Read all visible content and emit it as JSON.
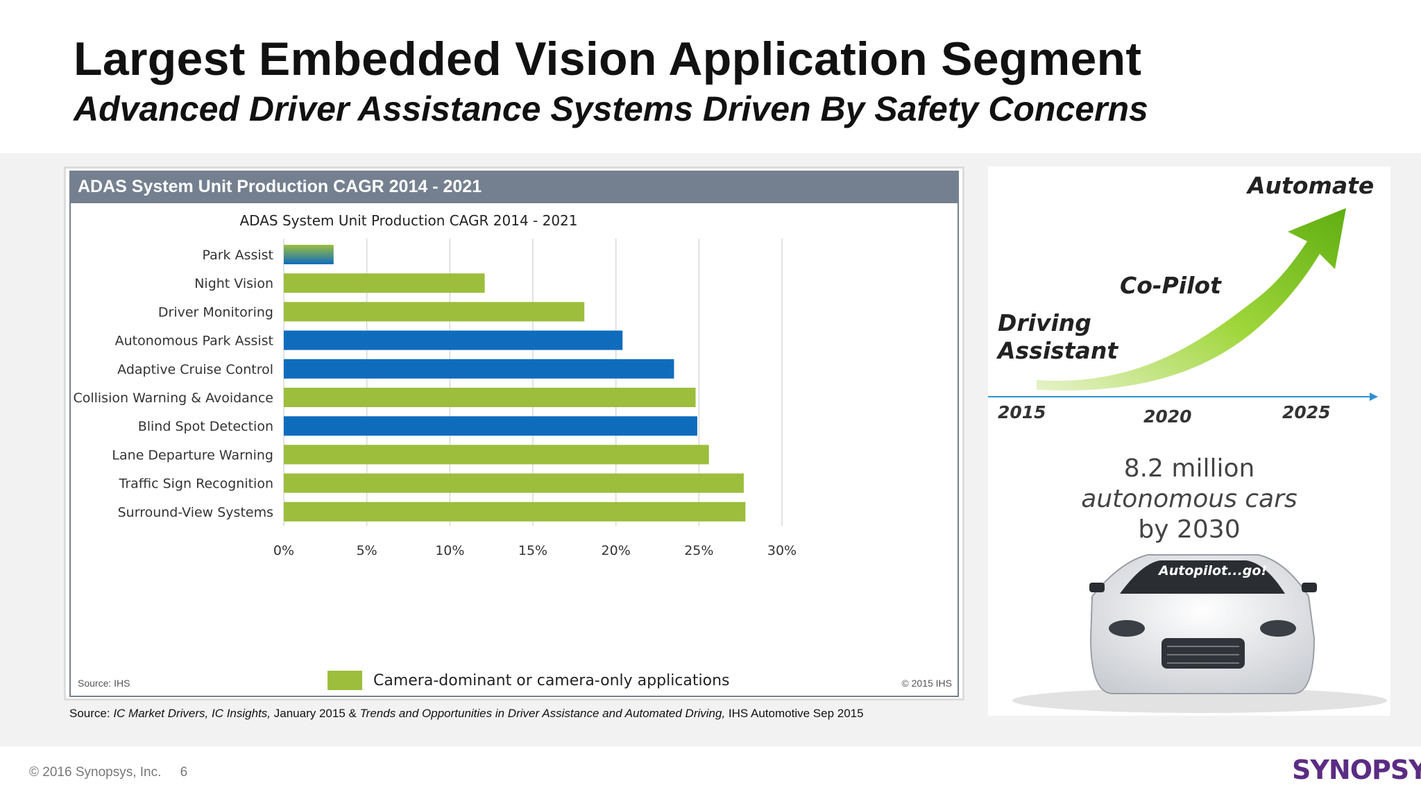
{
  "slide": {
    "title": "Largest Embedded Vision Application Segment",
    "subtitle": "Advanced Driver Assistance Systems Driven By Safety Concerns"
  },
  "chart_panel": {
    "header": "ADAS System Unit Production CAGR 2014 - 2021",
    "source": "Source: IHS",
    "copyright": "© 2015 IHS",
    "legend_label": "Camera-dominant or camera-only applications"
  },
  "chart_data": {
    "type": "bar",
    "orientation": "horizontal",
    "title": "ADAS System Unit Production CAGR 2014 - 2021",
    "xlabel": "",
    "ylabel": "",
    "xlim": [
      0,
      30
    ],
    "x_ticks": [
      0,
      5,
      10,
      15,
      20,
      25,
      30
    ],
    "x_tick_labels": [
      "0%",
      "5%",
      "10%",
      "15%",
      "20%",
      "25%",
      "30%"
    ],
    "grid": true,
    "legend_position": "bottom",
    "categories": [
      "Park Assist",
      "Night Vision",
      "Driver Monitoring",
      "Autonomous Park Assist",
      "Adaptive Cruise Control",
      "Collision Warning & Avoidance",
      "Blind Spot Detection",
      "Lane Departure Warning",
      "Traffic Sign Recognition",
      "Surround-View Systems"
    ],
    "values": [
      3.0,
      12.1,
      18.1,
      20.4,
      23.5,
      24.8,
      24.9,
      25.6,
      27.7,
      27.8
    ],
    "bar_styles": [
      "mixed",
      "camera",
      "camera",
      "other",
      "other",
      "camera",
      "other",
      "camera",
      "camera",
      "camera"
    ],
    "colors": {
      "camera": "#9cbe3c",
      "other": "#0f6cbd"
    }
  },
  "source_note": {
    "prefix": "Source: ",
    "italic_1": "IC Market  Drivers, IC Insights,",
    "mid_1": " January 2015 & ",
    "italic_2": "Trends and Opportunities in Driver Assistance and Automated Driving,",
    "mid_2": " IHS Automotive Sep 2015"
  },
  "roadmap": {
    "label_automate": "Automate",
    "label_copilot": "Co-Pilot",
    "label_driving": "Driving",
    "label_assistant": "Assistant",
    "years": [
      "2015",
      "2020",
      "2025"
    ],
    "stat_line1": "8.2 million",
    "stat_line2": "autonomous cars",
    "stat_line3": "by 2030",
    "windshield_text": "Autopilot...go!"
  },
  "footer": {
    "copyright": "© 2016 Synopsys, Inc.",
    "page_number": "6",
    "logo_text": "SYNOPSYS",
    "logo_mark": "®"
  },
  "colors": {
    "logo": "#5b2c83",
    "header_bar": "#74808f",
    "arrow_green": "#7dc11f"
  }
}
